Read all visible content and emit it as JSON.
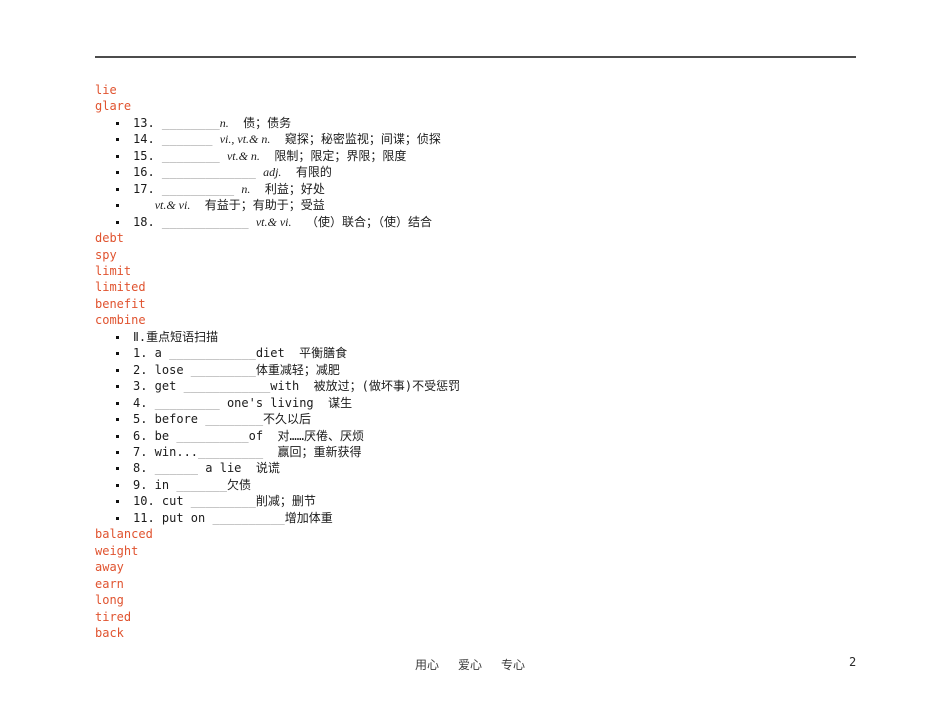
{
  "accent_color": "#e0532f",
  "text_color": "#1a1a1a",
  "blank_color": "#8c8c8c",
  "footer": {
    "motto": [
      "用心",
      "爱心",
      "专心"
    ],
    "page_number": "2"
  },
  "lines": [
    {
      "kind": "word",
      "text": "lie"
    },
    {
      "kind": "word",
      "text": "glare"
    },
    {
      "kind": "item",
      "segments": [
        {
          "s": "t",
          "v": "13. "
        },
        {
          "s": "b",
          "v": "________"
        },
        {
          "s": "p",
          "v": "n."
        },
        {
          "s": "t",
          "v": "  债；债务"
        }
      ]
    },
    {
      "kind": "item",
      "segments": [
        {
          "s": "t",
          "v": "14. "
        },
        {
          "s": "b",
          "v": "_______"
        },
        {
          "s": "t",
          "v": " "
        },
        {
          "s": "p",
          "v": "vi., vt.& n."
        },
        {
          "s": "t",
          "v": "  窥探；秘密监视；间谍；侦探"
        }
      ]
    },
    {
      "kind": "item",
      "segments": [
        {
          "s": "t",
          "v": "15. "
        },
        {
          "s": "b",
          "v": "________"
        },
        {
          "s": "t",
          "v": " "
        },
        {
          "s": "p",
          "v": "vt.& n."
        },
        {
          "s": "t",
          "v": "  限制；限定；界限；限度"
        }
      ]
    },
    {
      "kind": "item",
      "segments": [
        {
          "s": "t",
          "v": "16. "
        },
        {
          "s": "b",
          "v": "_____________"
        },
        {
          "s": "t",
          "v": " "
        },
        {
          "s": "p",
          "v": "adj."
        },
        {
          "s": "t",
          "v": "  有限的"
        }
      ]
    },
    {
      "kind": "item",
      "segments": [
        {
          "s": "t",
          "v": "17. "
        },
        {
          "s": "b",
          "v": "__________"
        },
        {
          "s": "t",
          "v": " "
        },
        {
          "s": "p",
          "v": "n."
        },
        {
          "s": "t",
          "v": "  利益；好处"
        }
      ]
    },
    {
      "kind": "item",
      "segments": [
        {
          "s": "t",
          "v": "   "
        },
        {
          "s": "p",
          "v": "vt.& vi."
        },
        {
          "s": "t",
          "v": "  有益于；有助于；受益"
        }
      ]
    },
    {
      "kind": "item",
      "segments": [
        {
          "s": "t",
          "v": "18. "
        },
        {
          "s": "b",
          "v": "____________"
        },
        {
          "s": "t",
          "v": " "
        },
        {
          "s": "p",
          "v": "vt.& vi."
        },
        {
          "s": "t",
          "v": "  （使）联合；（使）结合"
        }
      ]
    },
    {
      "kind": "word",
      "text": "debt"
    },
    {
      "kind": "word",
      "text": "spy"
    },
    {
      "kind": "word",
      "text": "limit"
    },
    {
      "kind": "word",
      "text": "limited"
    },
    {
      "kind": "word",
      "text": "benefit"
    },
    {
      "kind": "word",
      "text": "combine"
    },
    {
      "kind": "item",
      "segments": [
        {
          "s": "t",
          "v": "Ⅱ.重点短语扫描"
        }
      ]
    },
    {
      "kind": "item",
      "segments": [
        {
          "s": "t",
          "v": "1. a "
        },
        {
          "s": "b",
          "v": "____________"
        },
        {
          "s": "t",
          "v": "diet  平衡膳食"
        }
      ]
    },
    {
      "kind": "item",
      "segments": [
        {
          "s": "t",
          "v": "2. lose "
        },
        {
          "s": "b",
          "v": "_________"
        },
        {
          "s": "t",
          "v": "体重减轻；减肥"
        }
      ]
    },
    {
      "kind": "item",
      "segments": [
        {
          "s": "t",
          "v": "3. get "
        },
        {
          "s": "b",
          "v": "____________"
        },
        {
          "s": "t",
          "v": "with  被放过；(做坏事)不受惩罚"
        }
      ]
    },
    {
      "kind": "item",
      "segments": [
        {
          "s": "t",
          "v": "4. "
        },
        {
          "s": "b",
          "v": "_________"
        },
        {
          "s": "t",
          "v": " one's living  谋生"
        }
      ]
    },
    {
      "kind": "item",
      "segments": [
        {
          "s": "t",
          "v": "5. before "
        },
        {
          "s": "b",
          "v": "________"
        },
        {
          "s": "t",
          "v": "不久以后"
        }
      ]
    },
    {
      "kind": "item",
      "segments": [
        {
          "s": "t",
          "v": "6. be "
        },
        {
          "s": "b",
          "v": "__________"
        },
        {
          "s": "t",
          "v": "of  对……厌倦、厌烦"
        }
      ]
    },
    {
      "kind": "item",
      "segments": [
        {
          "s": "t",
          "v": "7. win..."
        },
        {
          "s": "b",
          "v": "_________"
        },
        {
          "s": "t",
          "v": "  赢回；重新获得"
        }
      ]
    },
    {
      "kind": "item",
      "segments": [
        {
          "s": "t",
          "v": "8. "
        },
        {
          "s": "b",
          "v": "______"
        },
        {
          "s": "t",
          "v": " a lie  说谎"
        }
      ]
    },
    {
      "kind": "item",
      "segments": [
        {
          "s": "t",
          "v": "9. in "
        },
        {
          "s": "b",
          "v": "_______"
        },
        {
          "s": "t",
          "v": "欠债"
        }
      ]
    },
    {
      "kind": "item",
      "segments": [
        {
          "s": "t",
          "v": "10. cut "
        },
        {
          "s": "b",
          "v": "_________"
        },
        {
          "s": "t",
          "v": "削减；删节"
        }
      ]
    },
    {
      "kind": "item",
      "segments": [
        {
          "s": "t",
          "v": "11. put on "
        },
        {
          "s": "b",
          "v": "__________"
        },
        {
          "s": "t",
          "v": "增加体重"
        }
      ]
    },
    {
      "kind": "word",
      "text": "balanced"
    },
    {
      "kind": "word",
      "text": "weight"
    },
    {
      "kind": "word",
      "text": "away"
    },
    {
      "kind": "word",
      "text": "earn"
    },
    {
      "kind": "word",
      "text": "long"
    },
    {
      "kind": "word",
      "text": "tired"
    },
    {
      "kind": "word",
      "text": "back"
    }
  ]
}
